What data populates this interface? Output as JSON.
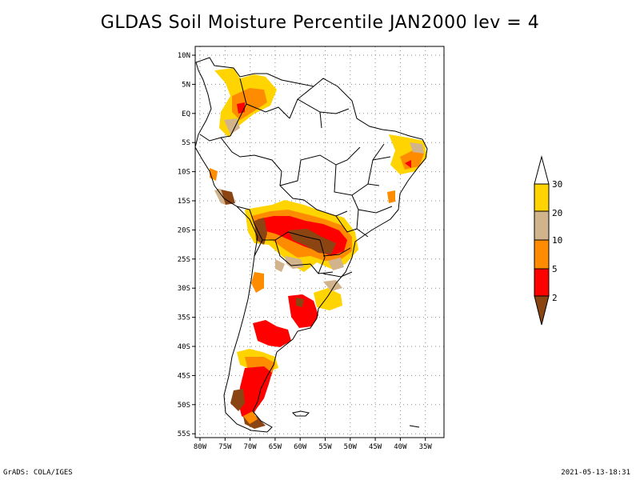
{
  "title": "GLDAS Soil Moisture Percentile JAN2000 lev = 4",
  "footer_left": "GrADS: COLA/IGES",
  "footer_right": "2021-05-13-18:31",
  "lat_labels": [
    "10N",
    "5N",
    "EQ",
    "5S",
    "10S",
    "15S",
    "20S",
    "25S",
    "30S",
    "35S",
    "40S",
    "45S",
    "50S",
    "55S"
  ],
  "lon_labels": [
    "80W",
    "75W",
    "70W",
    "65W",
    "60W",
    "55W",
    "50W",
    "45W",
    "40W",
    "35W"
  ],
  "colorbar": {
    "labels": [
      "30",
      "20",
      "10",
      "5",
      "2"
    ],
    "colors": {
      "above30": "#ffffff",
      "20-30": "#ffd400",
      "10-20": "#d2b48c",
      "5-10": "#ff8c00",
      "2-5": "#ff0000",
      "below2": "#8b4513"
    }
  },
  "map_colors": {
    "land_outline": "#000000",
    "grid": "#8a8a8a"
  }
}
